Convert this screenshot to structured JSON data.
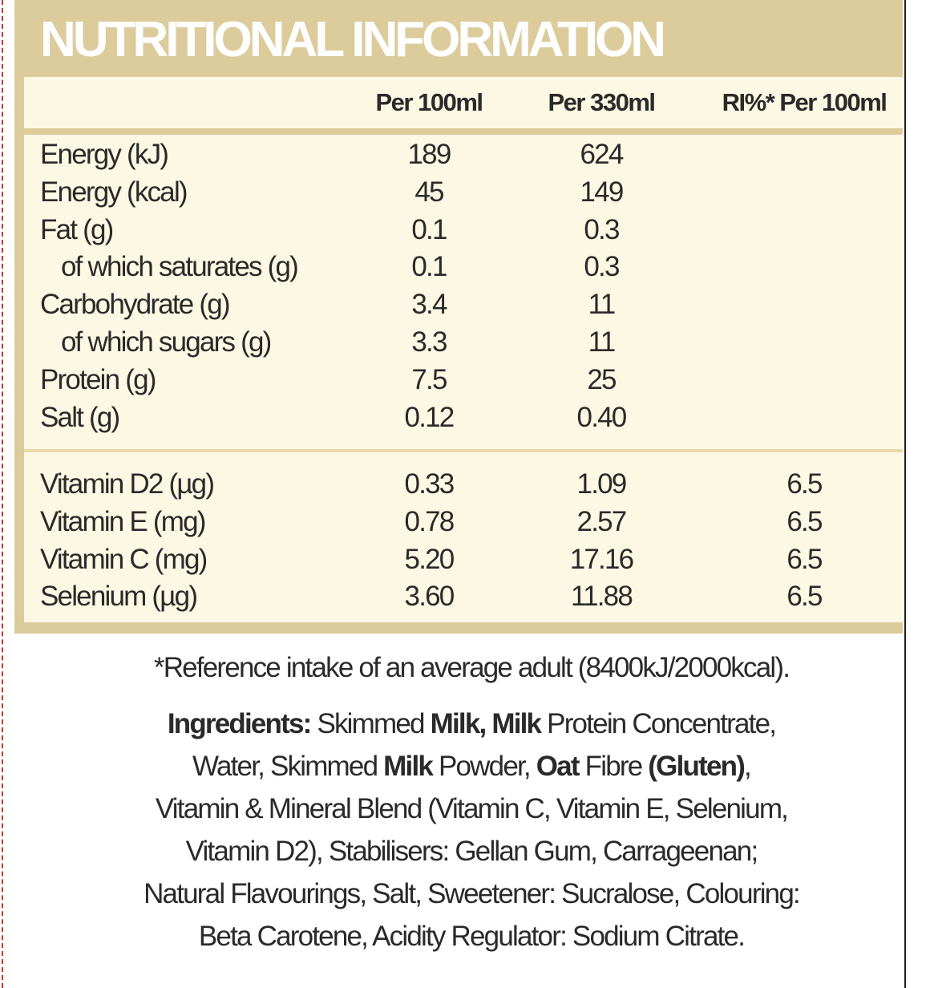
{
  "header": {
    "title": "NUTRITIONAL INFORMATION"
  },
  "table": {
    "columns": [
      "Per 100ml",
      "Per 330ml",
      "RI%* Per 100ml"
    ],
    "rows": [
      {
        "label": "Energy (kJ)",
        "values": [
          "189",
          "624"
        ]
      },
      {
        "label": "Energy (kcal)",
        "values": [
          "45",
          "149"
        ]
      },
      {
        "label": "Fat (g)",
        "values": [
          "0.1",
          "0.3"
        ]
      },
      {
        "label": "of which saturates (g)",
        "indent": true,
        "values": [
          "0.1",
          "0.3"
        ]
      },
      {
        "label": "Carbohydrate (g)",
        "values": [
          "3.4",
          "11"
        ]
      },
      {
        "label": "of which sugars (g)",
        "indent": true,
        "values": [
          "3.3",
          "11"
        ]
      },
      {
        "label": "Protein (g)",
        "values": [
          "7.5",
          "25"
        ]
      },
      {
        "label": "Salt (g)",
        "values": [
          "0.12",
          "0.40"
        ]
      }
    ],
    "vitamins": [
      {
        "label": "Vitamin D2 (µg)",
        "values": [
          "0.33",
          "1.09",
          "6.5"
        ]
      },
      {
        "label": "Vitamin E (mg)",
        "values": [
          "0.78",
          "2.57",
          "6.5"
        ]
      },
      {
        "label": "Vitamin C (mg)",
        "values": [
          "5.20",
          "17.16",
          "6.5"
        ]
      },
      {
        "label": "Selenium (µg)",
        "values": [
          "3.60",
          "11.88",
          "6.5"
        ]
      }
    ]
  },
  "footnote": "*Reference intake of an average adult (8400kJ/2000kcal).",
  "ingredients": {
    "lines": [
      [
        {
          "text": "Ingredients:",
          "bold": true
        },
        {
          "text": " Skimmed "
        },
        {
          "text": "Milk, Milk",
          "bold": true
        },
        {
          "text": " Protein Concentrate,"
        }
      ],
      [
        {
          "text": "Water, Skimmed "
        },
        {
          "text": "Milk",
          "bold": true
        },
        {
          "text": " Powder, "
        },
        {
          "text": "Oat",
          "bold": true
        },
        {
          "text": " Fibre "
        },
        {
          "text": "(Gluten)",
          "bold": true
        },
        {
          "text": ","
        }
      ],
      [
        {
          "text": "Vitamin & Mineral Blend (Vitamin C, Vitamin E, Selenium,"
        }
      ],
      [
        {
          "text": "Vitamin D2), Stabilisers: Gellan Gum, Carrageenan;"
        }
      ],
      [
        {
          "text": "Natural Flavourings, Salt, Sweetener: Sucralose, Colouring:"
        }
      ],
      [
        {
          "text": "Beta Carotene, Acidity Regulator: Sodium Citrate."
        }
      ]
    ]
  }
}
